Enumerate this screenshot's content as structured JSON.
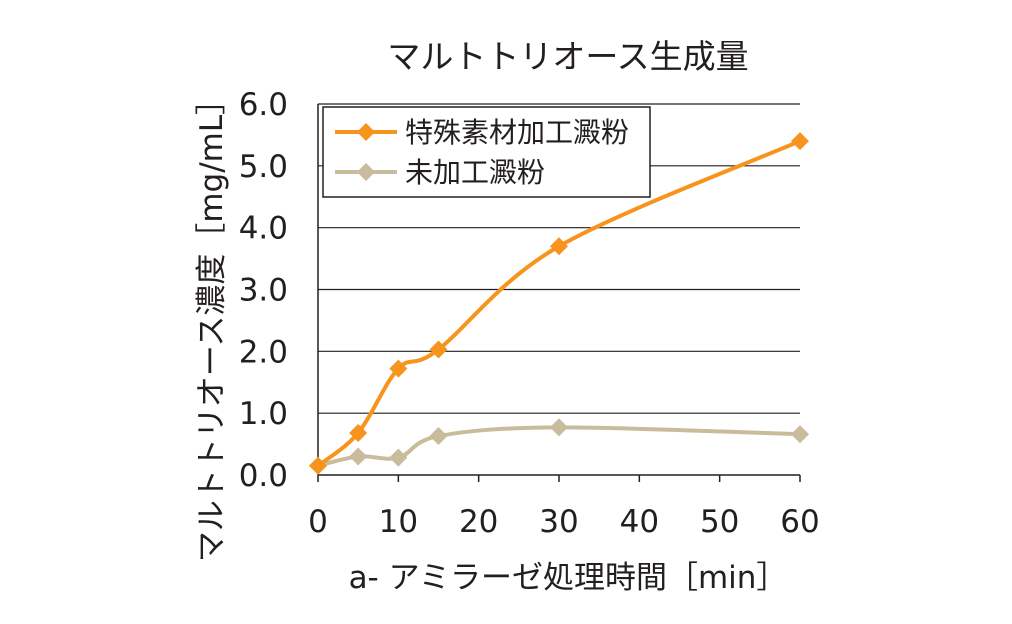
{
  "chart_data": {
    "type": "line",
    "title": "マルトトリオース生成量",
    "xlabel": "a- アミラーゼ処理時間［min］",
    "ylabel": "マルトトリオース濃度［mg/mL］",
    "xlim": [
      0,
      60
    ],
    "ylim": [
      0,
      6
    ],
    "x_ticks": [
      "0",
      "10",
      "20",
      "30",
      "40",
      "50",
      "60"
    ],
    "y_ticks": [
      "0.0",
      "1.0",
      "2.0",
      "3.0",
      "4.0",
      "5.0",
      "6.0"
    ],
    "grid": "horizontal",
    "legend_position": "top-left",
    "series": [
      {
        "name": "特殊素材加工澱粉",
        "color": "#f7941d",
        "marker": "diamond",
        "x": [
          0,
          5,
          10,
          15,
          30,
          60
        ],
        "y": [
          0.15,
          0.68,
          1.72,
          2.03,
          3.7,
          5.4
        ]
      },
      {
        "name": "未加工澱粉",
        "color": "#c9bc9c",
        "marker": "diamond",
        "x": [
          0,
          5,
          10,
          15,
          30,
          60
        ],
        "y": [
          0.15,
          0.3,
          0.28,
          0.63,
          0.77,
          0.66
        ]
      }
    ]
  }
}
